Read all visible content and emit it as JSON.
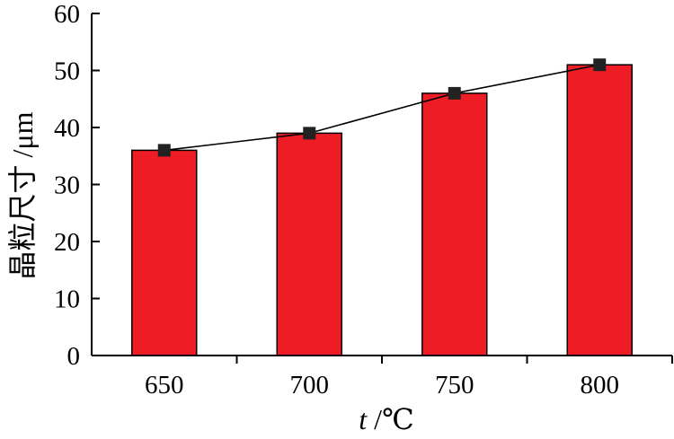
{
  "chart_data": {
    "type": "bar",
    "xlabel": "t /℃",
    "xlabel_var": "t",
    "xlabel_unit": " /℃",
    "ylabel": "晶粒尺寸 /μm",
    "categories": [
      "650",
      "700",
      "750",
      "800"
    ],
    "series": [
      {
        "type": "bar",
        "values": [
          36,
          39,
          46,
          51
        ],
        "color": "#ee1c25"
      },
      {
        "type": "line",
        "values": [
          36,
          39,
          46,
          51
        ],
        "color": "#000000",
        "marker": "square"
      }
    ],
    "ylim": [
      0,
      60
    ],
    "yticks": [
      "0",
      "10",
      "20",
      "30",
      "40",
      "50",
      "60"
    ],
    "grid": false,
    "legend": "none"
  }
}
